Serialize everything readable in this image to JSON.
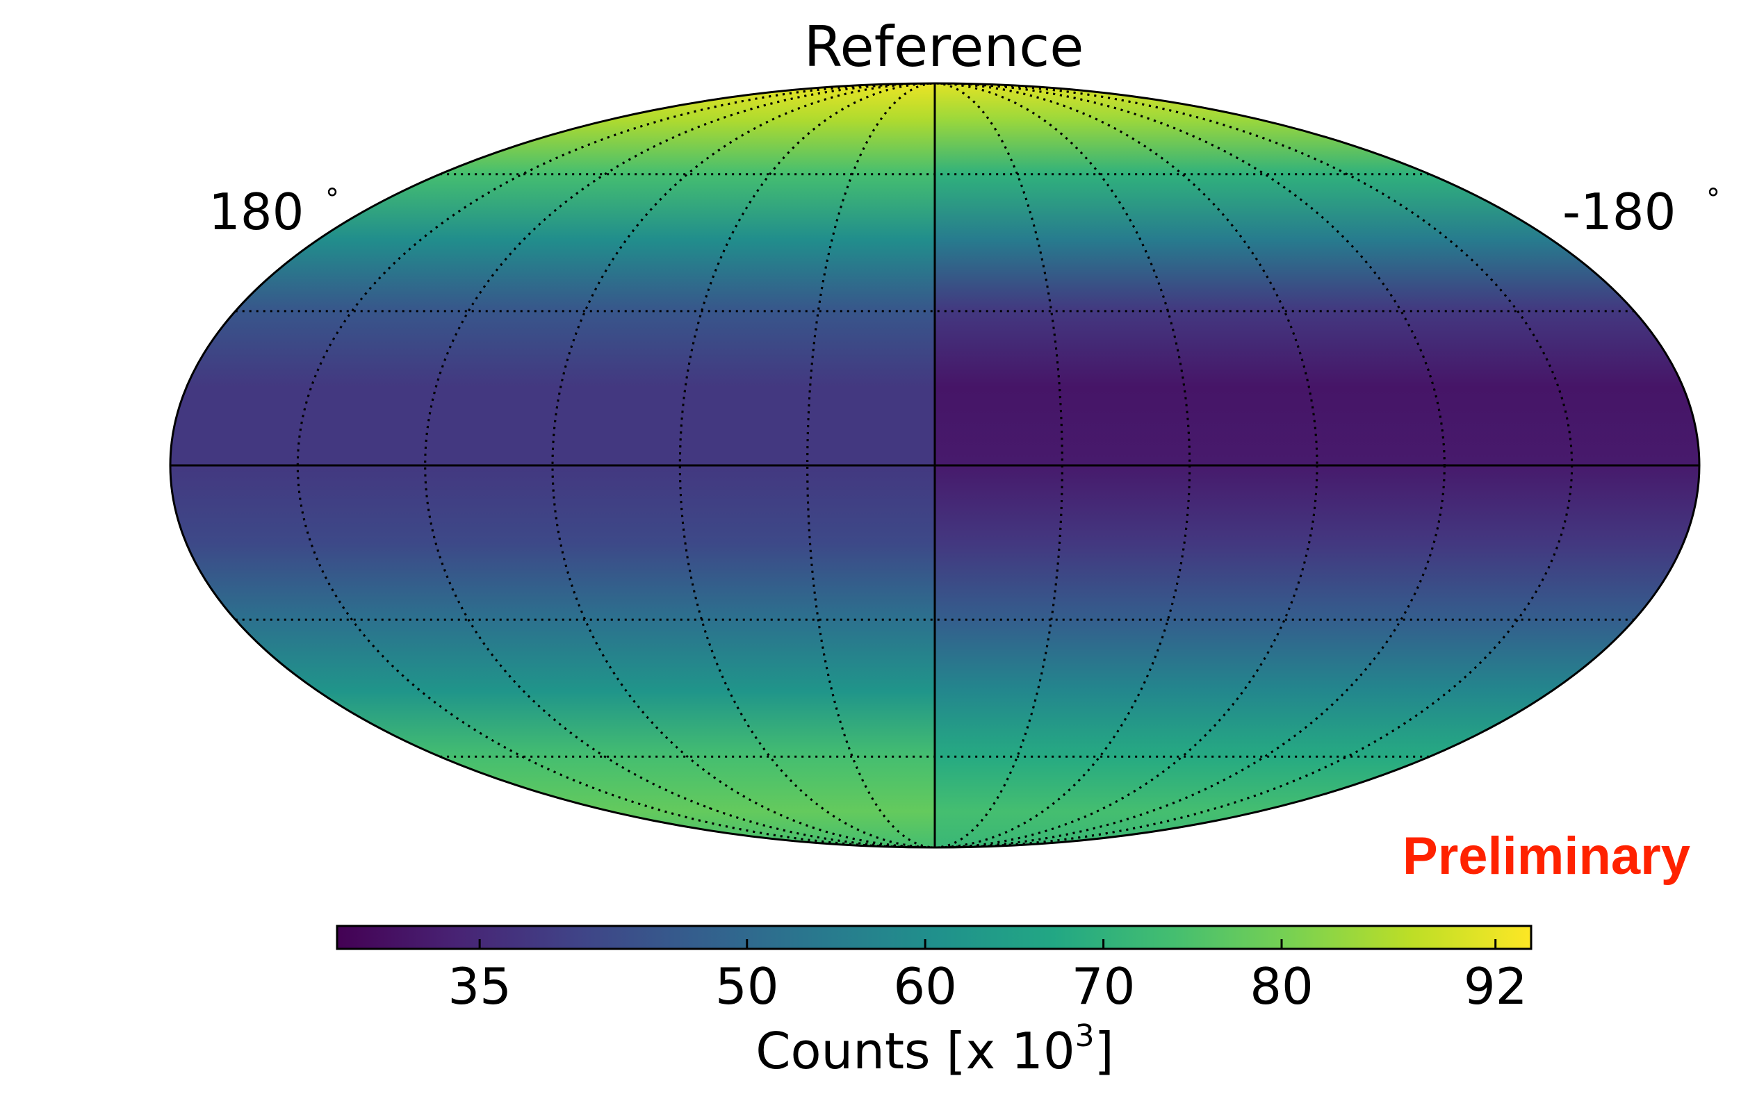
{
  "chart_data": {
    "type": "heatmap",
    "projection": "mollweide",
    "title": "Reference",
    "longitude_labels": {
      "left": "180",
      "right": "-180",
      "unit_symbol": "°"
    },
    "colormap": "viridis",
    "colorbar": {
      "label_prefix": "Counts [x 10",
      "label_exponent": "3",
      "label_suffix": "]",
      "vmin": 27,
      "vmax": 94,
      "ticks": [
        {
          "value": 35,
          "label": "35"
        },
        {
          "value": 50,
          "label": "50"
        },
        {
          "value": 60,
          "label": "60"
        },
        {
          "value": 70,
          "label": "70"
        },
        {
          "value": 80,
          "label": "80"
        },
        {
          "value": 92,
          "label": "92"
        }
      ]
    },
    "graticule": {
      "meridians_deg": [
        -150,
        -120,
        -90,
        -60,
        -30,
        30,
        60,
        90,
        120,
        150
      ],
      "parallels_deg": [
        -60,
        -30,
        30,
        60
      ],
      "style": "dotted",
      "solid_axes": [
        "equator",
        "prime-meridian"
      ]
    },
    "sky_profile": {
      "note": "Counts (x10^3) by latitude band, eastern (left) vs western (right) half",
      "latitude_deg": [
        -90,
        -75,
        -60,
        -45,
        -30,
        -15,
        0,
        15,
        30,
        45,
        60,
        75,
        90
      ],
      "left_half": [
        74,
        78,
        74,
        62,
        52,
        42,
        38,
        38,
        45,
        60,
        74,
        86,
        92
      ],
      "right_half": [
        72,
        74,
        68,
        58,
        47,
        38,
        32,
        31,
        38,
        55,
        70,
        84,
        91
      ]
    }
  },
  "annotation": {
    "text": "Preliminary",
    "color": "#ff2200"
  }
}
